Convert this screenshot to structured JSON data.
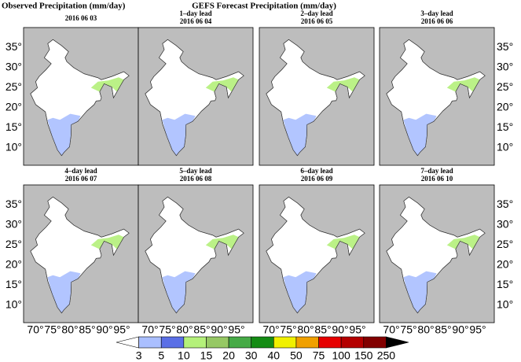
{
  "title_left": "Observed Precipitation (mm/day)",
  "title_center": "GEFS Forecast Precipitation (mm/day)",
  "panels": [
    {
      "date": "2016 06 03"
    },
    {
      "lead": "1–day lead",
      "date": "2016 06 04"
    },
    {
      "lead": "2–day lead",
      "date": "2016 06 05"
    },
    {
      "lead": "3–day lead",
      "date": "2016 06 06"
    },
    {
      "lead": "4–day lead",
      "date": "2016 06 07"
    },
    {
      "lead": "5–day lead",
      "date": "2016 06 08"
    },
    {
      "lead": "6–day lead",
      "date": "2016 06 09"
    },
    {
      "lead": "7–day lead",
      "date": "2016 06 10"
    }
  ],
  "lat_ticks": [
    "35°",
    "30°",
    "25°",
    "20°",
    "15°",
    "10°"
  ],
  "lon_ticks": [
    "70°",
    "75°",
    "80°",
    "85°",
    "90°",
    "95°"
  ],
  "colorbar": {
    "levels": [
      3,
      5,
      10,
      15,
      20,
      30,
      40,
      50,
      75,
      100,
      150,
      250
    ],
    "colors": [
      "#ffffff",
      "#aabfff",
      "#5a6fe6",
      "#b4f07a",
      "#96c864",
      "#46aa46",
      "#148c14",
      "#f0f000",
      "#f0a000",
      "#e60000",
      "#b40000",
      "#820000",
      "#000000"
    ]
  }
}
